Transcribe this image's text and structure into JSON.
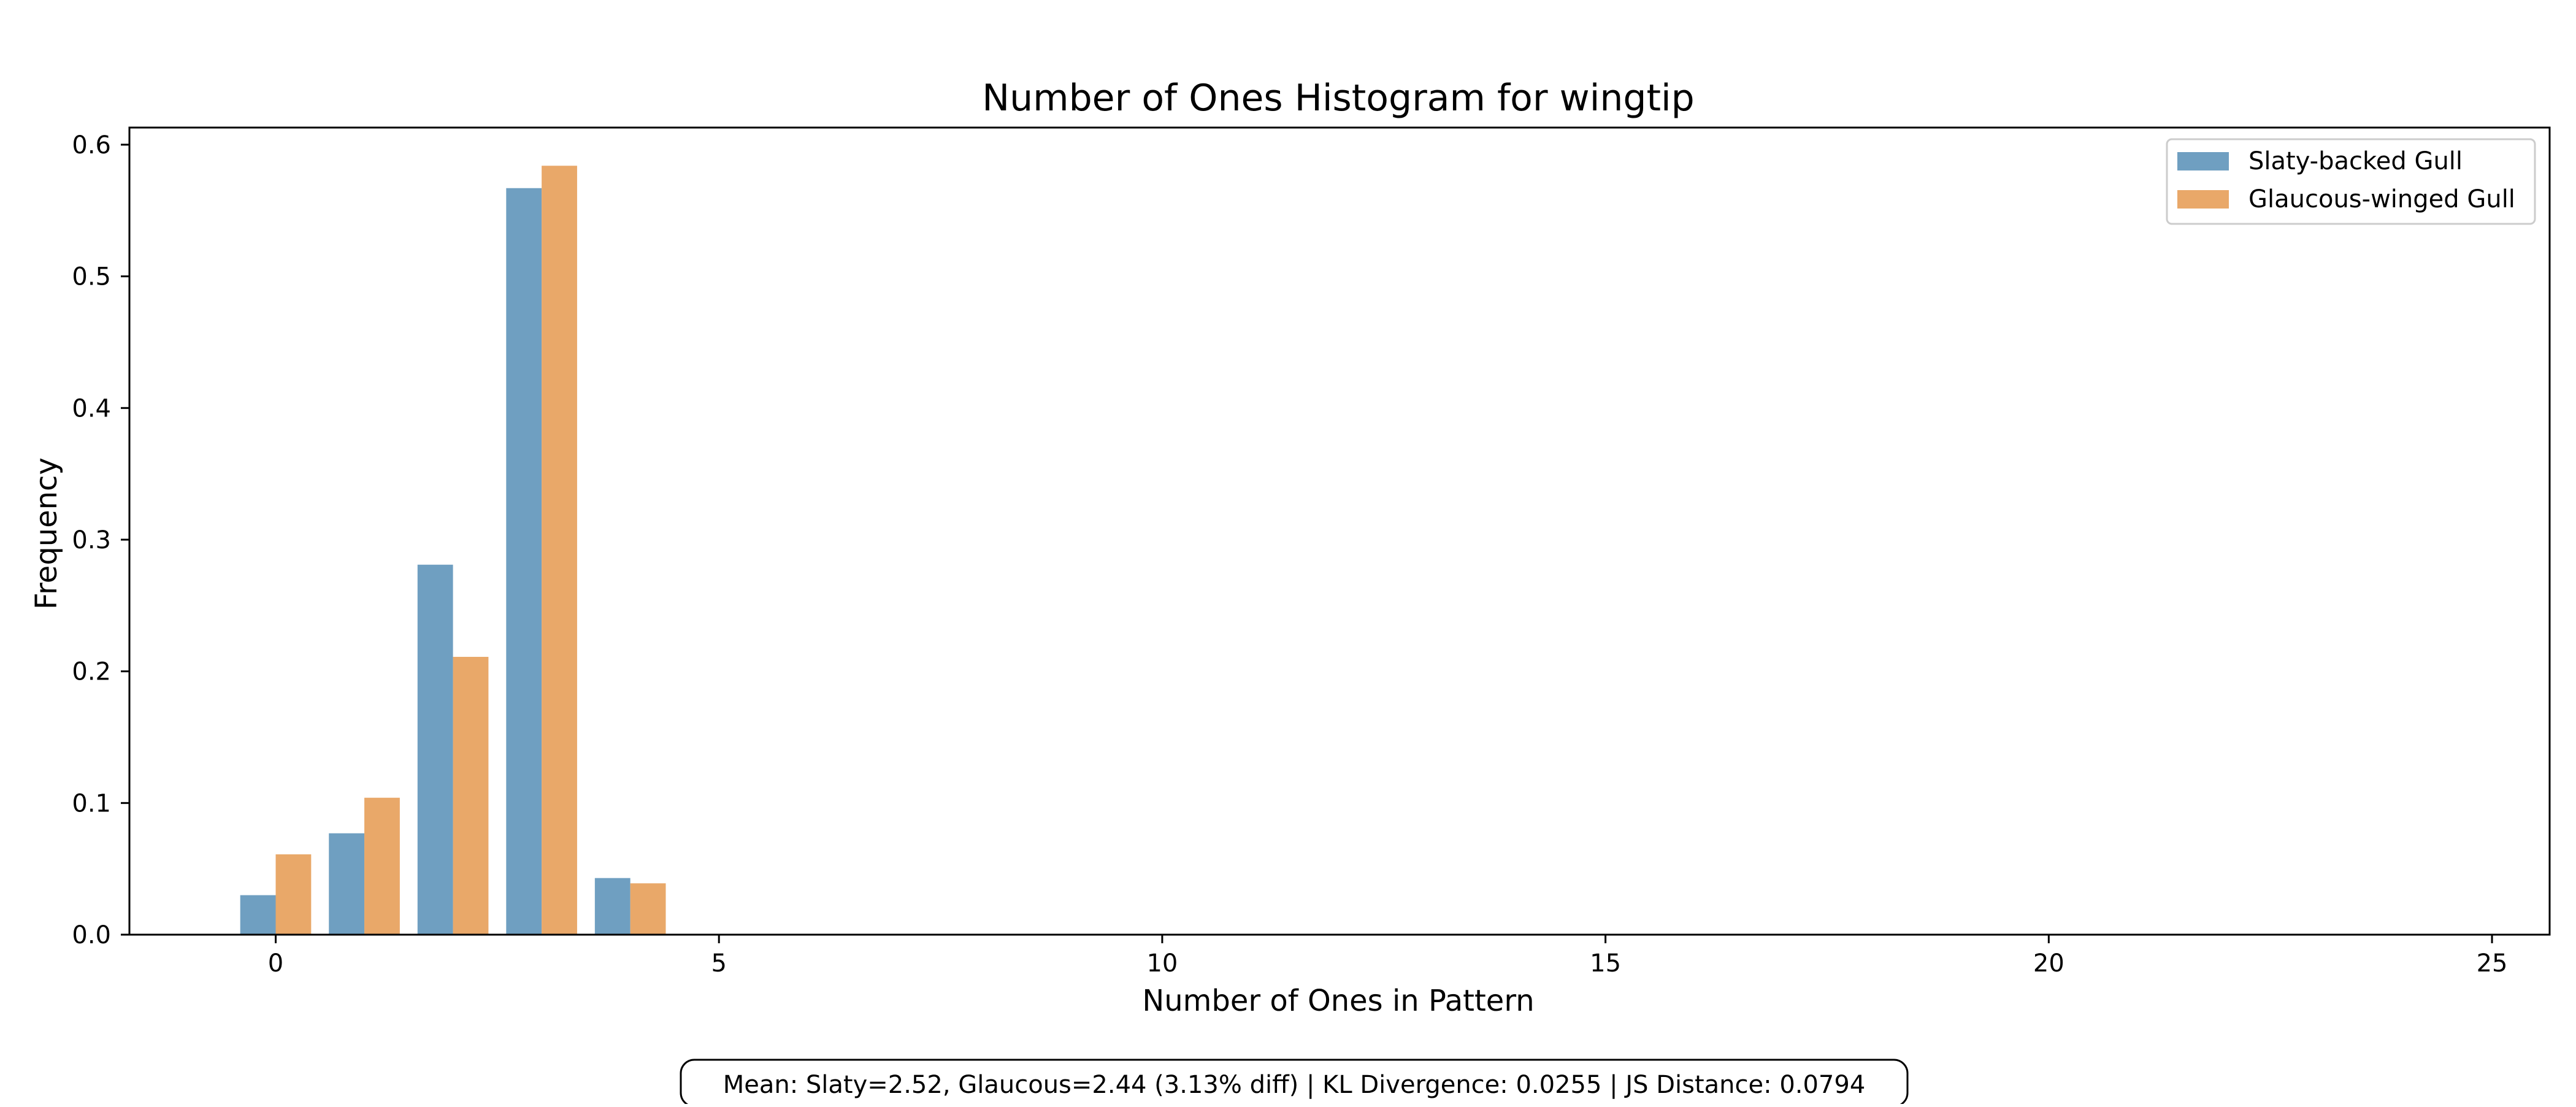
{
  "chart_data": {
    "type": "bar",
    "title": "Number of Ones Histogram for wingtip",
    "xlabel": "Number of Ones in Pattern",
    "ylabel": "Frequency",
    "categories": [
      0,
      1,
      2,
      3,
      4
    ],
    "series": [
      {
        "name": "Slaty-backed Gull",
        "values": [
          0.03,
          0.077,
          0.281,
          0.567,
          0.043
        ],
        "color": "#6f9fc1"
      },
      {
        "name": "Glaucous-winged Gull",
        "values": [
          0.061,
          0.104,
          0.211,
          0.584,
          0.039
        ],
        "color": "#e9a869"
      }
    ],
    "xlim": [
      -1.65,
      25.65
    ],
    "ylim": [
      0,
      0.613
    ],
    "xticks": [
      0,
      5,
      10,
      15,
      20,
      25
    ],
    "yticks": [
      0.0,
      0.1,
      0.2,
      0.3,
      0.4,
      0.5,
      0.6
    ],
    "xtick_labels": [
      "0",
      "5",
      "10",
      "15",
      "20",
      "25"
    ],
    "ytick_labels": [
      "0.0",
      "0.1",
      "0.2",
      "0.3",
      "0.4",
      "0.5",
      "0.6"
    ],
    "grid": false,
    "legend_position": "top-right",
    "annotation": "Mean: Slaty=2.52, Glaucous=2.44 (3.13% diff) | KL Divergence: 0.0255 | JS Distance: 0.0794"
  }
}
